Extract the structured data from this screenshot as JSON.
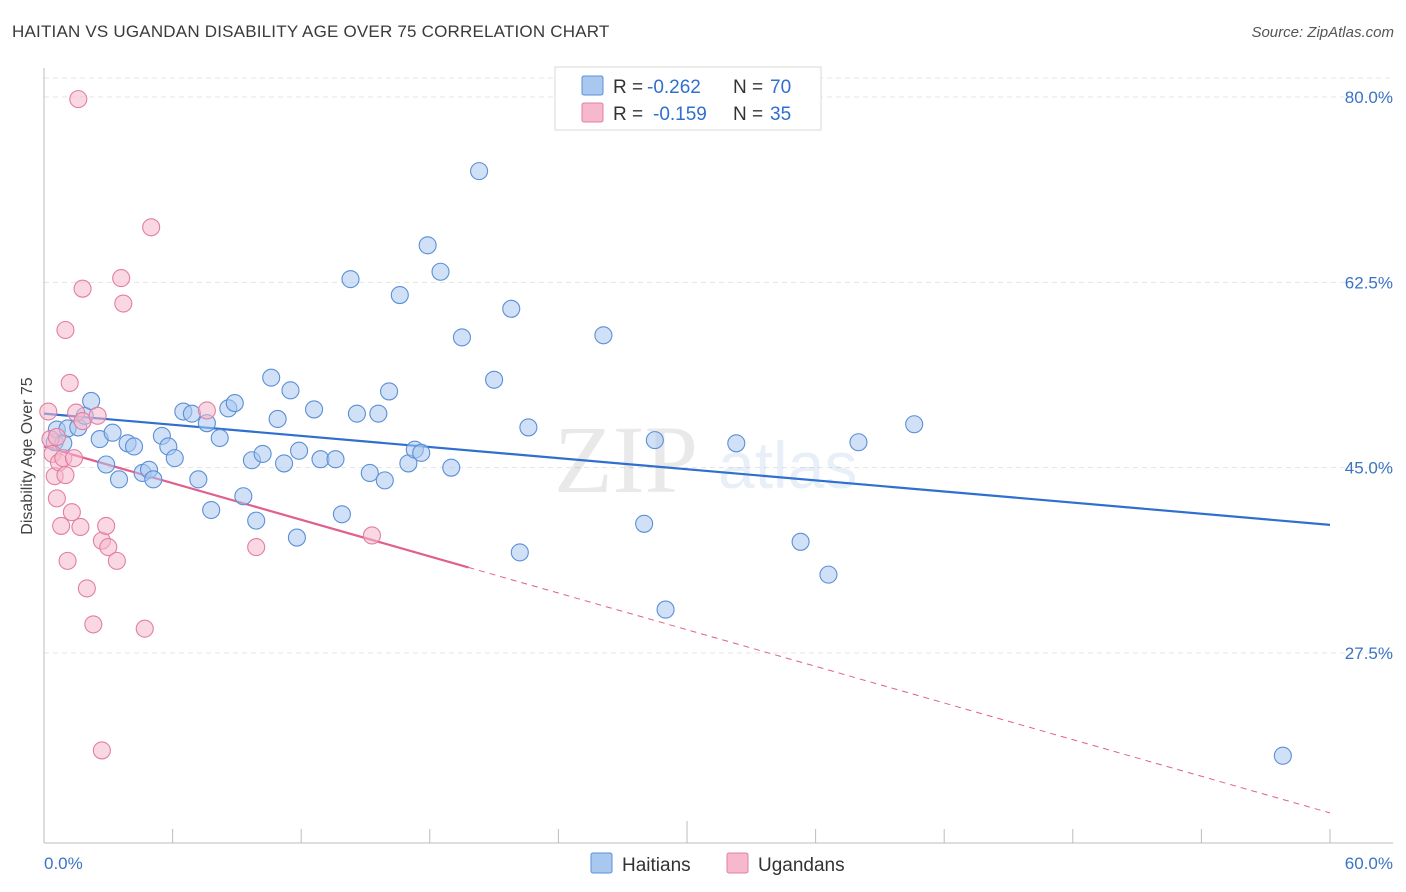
{
  "title": "HAITIAN VS UGANDAN DISABILITY AGE OVER 75 CORRELATION CHART",
  "source": "Source: ZipAtlas.com",
  "watermark": {
    "zip": "ZIP",
    "atlas": "atlas"
  },
  "legend_top": [
    {
      "name": "Haitians",
      "r_label": "R =",
      "r_value": "-0.262",
      "n_label": "N =",
      "n_value": "70"
    },
    {
      "name": "Ugandans",
      "r_label": "R =",
      "r_value": "-0.159",
      "n_label": "N =",
      "n_value": "35"
    }
  ],
  "colors": {
    "haitian_fill": "#a9c8f0",
    "haitian_stroke": "#5b8fd6",
    "haitian_line": "#2f6fcf",
    "ugandan_fill": "#f5b8cc",
    "ugandan_stroke": "#e27fa0",
    "ugandan_line": "#e0608c",
    "grid": "#e4e4e4",
    "tick_text": "#3b73c4"
  },
  "chart_data": {
    "type": "scatter",
    "title": "HAITIAN VS UGANDAN DISABILITY AGE OVER 75 CORRELATION CHART",
    "xlabel": "",
    "ylabel": "Disability Age Over 75",
    "xlim": [
      0,
      60
    ],
    "ylim": [
      11.5,
      83
    ],
    "x_tick_labels": [
      "0.0%",
      "60.0%"
    ],
    "y_ticks": [
      27.5,
      45.0,
      62.5,
      80.0
    ],
    "y_tick_labels": [
      "27.5%",
      "45.0%",
      "62.5%",
      "80.0%"
    ],
    "grid": true,
    "legend_position": "bottom-center",
    "series": [
      {
        "name": "Haitians",
        "r": -0.262,
        "n": 70,
        "trend": {
          "x": [
            0,
            60
          ],
          "y": [
            50.1,
            39.6
          ],
          "dashed_extension": false
        },
        "points": [
          [
            0.5,
            47.4
          ],
          [
            0.6,
            48.6
          ],
          [
            0.9,
            47.3
          ],
          [
            1.1,
            48.7
          ],
          [
            1.6,
            48.8
          ],
          [
            1.9,
            49.9
          ],
          [
            2.2,
            51.3
          ],
          [
            2.6,
            47.7
          ],
          [
            2.9,
            45.3
          ],
          [
            3.2,
            48.3
          ],
          [
            3.5,
            43.9
          ],
          [
            3.9,
            47.3
          ],
          [
            4.2,
            47.0
          ],
          [
            4.6,
            44.5
          ],
          [
            4.9,
            44.8
          ],
          [
            5.1,
            43.9
          ],
          [
            5.5,
            48.0
          ],
          [
            5.8,
            47.0
          ],
          [
            6.1,
            45.9
          ],
          [
            6.5,
            50.3
          ],
          [
            6.9,
            50.1
          ],
          [
            7.2,
            43.9
          ],
          [
            7.6,
            49.2
          ],
          [
            7.8,
            41.0
          ],
          [
            8.2,
            47.8
          ],
          [
            8.6,
            50.6
          ],
          [
            8.9,
            51.1
          ],
          [
            9.3,
            42.3
          ],
          [
            9.7,
            45.7
          ],
          [
            9.9,
            40.0
          ],
          [
            10.2,
            46.3
          ],
          [
            10.6,
            53.5
          ],
          [
            10.9,
            49.6
          ],
          [
            11.2,
            45.4
          ],
          [
            11.5,
            52.3
          ],
          [
            11.8,
            38.4
          ],
          [
            11.9,
            46.6
          ],
          [
            12.6,
            50.5
          ],
          [
            12.9,
            45.8
          ],
          [
            13.6,
            45.8
          ],
          [
            13.9,
            40.6
          ],
          [
            14.3,
            62.8
          ],
          [
            14.6,
            50.1
          ],
          [
            15.2,
            44.5
          ],
          [
            15.6,
            50.1
          ],
          [
            15.9,
            43.8
          ],
          [
            16.1,
            52.2
          ],
          [
            16.6,
            61.3
          ],
          [
            17.0,
            45.4
          ],
          [
            17.3,
            46.7
          ],
          [
            17.6,
            46.4
          ],
          [
            17.9,
            66.0
          ],
          [
            18.5,
            63.5
          ],
          [
            19.0,
            45.0
          ],
          [
            19.5,
            57.3
          ],
          [
            20.3,
            73.0
          ],
          [
            21.0,
            53.3
          ],
          [
            21.8,
            60.0
          ],
          [
            22.2,
            37.0
          ],
          [
            22.6,
            48.8
          ],
          [
            26.1,
            57.5
          ],
          [
            28.0,
            39.7
          ],
          [
            28.5,
            47.6
          ],
          [
            29.0,
            31.6
          ],
          [
            32.3,
            47.3
          ],
          [
            35.3,
            38.0
          ],
          [
            36.6,
            34.9
          ],
          [
            38.0,
            47.4
          ],
          [
            40.6,
            49.1
          ],
          [
            57.8,
            17.8
          ]
        ]
      },
      {
        "name": "Ugandans",
        "r": -0.159,
        "n": 35,
        "trend": {
          "x": [
            0,
            60
          ],
          "y": [
            47.0,
            12.4
          ],
          "solid_until_x": 19.8,
          "dashed_extension": true
        },
        "points": [
          [
            0.2,
            50.3
          ],
          [
            0.3,
            47.7
          ],
          [
            0.4,
            46.3
          ],
          [
            0.5,
            44.2
          ],
          [
            0.6,
            47.9
          ],
          [
            0.6,
            42.1
          ],
          [
            0.7,
            45.5
          ],
          [
            0.8,
            39.5
          ],
          [
            0.9,
            45.9
          ],
          [
            1.0,
            44.3
          ],
          [
            1.0,
            58.0
          ],
          [
            1.1,
            36.2
          ],
          [
            1.2,
            53.0
          ],
          [
            1.3,
            40.8
          ],
          [
            1.4,
            45.9
          ],
          [
            1.5,
            50.2
          ],
          [
            1.6,
            79.8
          ],
          [
            1.7,
            39.4
          ],
          [
            1.8,
            49.4
          ],
          [
            1.8,
            61.9
          ],
          [
            2.0,
            33.6
          ],
          [
            2.3,
            30.2
          ],
          [
            2.5,
            49.9
          ],
          [
            2.7,
            38.1
          ],
          [
            2.9,
            39.5
          ],
          [
            3.0,
            37.5
          ],
          [
            2.7,
            18.3
          ],
          [
            3.4,
            36.2
          ],
          [
            3.6,
            62.9
          ],
          [
            3.7,
            60.5
          ],
          [
            4.7,
            29.8
          ],
          [
            5.0,
            67.7
          ],
          [
            7.6,
            50.4
          ],
          [
            9.9,
            37.5
          ],
          [
            15.3,
            38.6
          ]
        ]
      }
    ]
  }
}
